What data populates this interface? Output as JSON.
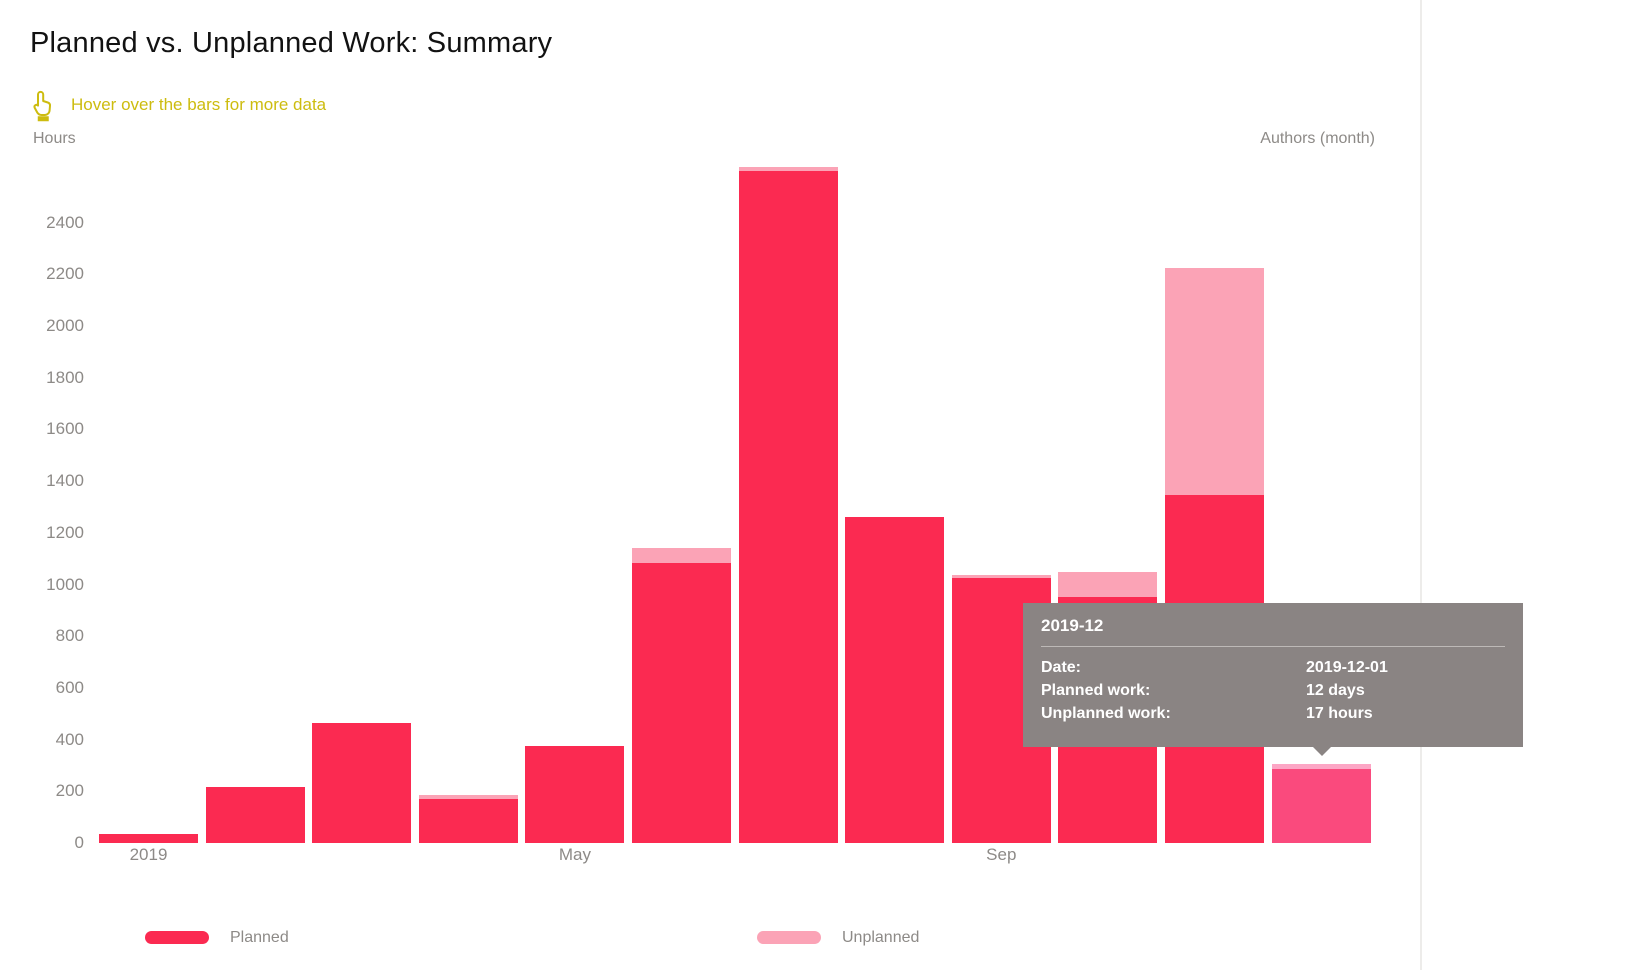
{
  "title": "Planned vs. Unplanned Work: Summary",
  "hint": {
    "icon": "pointing-hand-icon",
    "text": "Hover over the bars for more data"
  },
  "axes": {
    "y_title": "Hours",
    "x_title": "Authors (month)",
    "y_ticks": [
      0,
      200,
      400,
      600,
      800,
      1000,
      1200,
      1400,
      1600,
      1800,
      2000,
      2200,
      2400
    ],
    "x_ticks": [
      {
        "label": "2019",
        "month_index": 0
      },
      {
        "label": "May",
        "month_index": 4
      },
      {
        "label": "Sep",
        "month_index": 8
      }
    ]
  },
  "legend": [
    {
      "label": "Planned",
      "color": "#FB2A51"
    },
    {
      "label": "Unplanned",
      "color": "#FBA3B6"
    }
  ],
  "tooltip": {
    "header": "2019-12",
    "rows": [
      {
        "label": "Date:",
        "value": "2019-12-01"
      },
      {
        "label": "Planned work:",
        "value": "12 days"
      },
      {
        "label": "Unplanned work:",
        "value": "17 hours"
      }
    ]
  },
  "colors": {
    "planned": "#FB2A51",
    "unplanned": "#FBA3B6",
    "planned_highlight": "#FA4A7D",
    "unplanned_highlight": "#FCA6C5",
    "hint_yellow": "#CDBC0F",
    "tooltip_bg": "#8A8483",
    "axis_text": "#8D8A87"
  },
  "chart_data": {
    "type": "bar",
    "stacked": true,
    "title": "Planned vs. Unplanned Work: Summary",
    "xlabel": "Authors (month)",
    "ylabel": "Hours",
    "ylim": [
      0,
      2600
    ],
    "grid": false,
    "legend_position": "bottom",
    "categories": [
      "2019-01",
      "2019-02",
      "2019-03",
      "2019-04",
      "2019-05",
      "2019-06",
      "2019-07",
      "2019-08",
      "2019-09",
      "2019-10",
      "2019-11",
      "2019-12"
    ],
    "series": [
      {
        "name": "Planned",
        "values": [
          35,
          215,
          465,
          170,
          375,
          1085,
          2600,
          1260,
          1025,
          950,
          1345,
          288
        ]
      },
      {
        "name": "Unplanned",
        "values": [
          0,
          0,
          0,
          15,
          0,
          55,
          15,
          0,
          10,
          100,
          880,
          17
        ]
      }
    ],
    "highlighted_category": "2019-12",
    "visible_x_tick_labels": [
      "2019",
      "May",
      "Sep"
    ]
  }
}
